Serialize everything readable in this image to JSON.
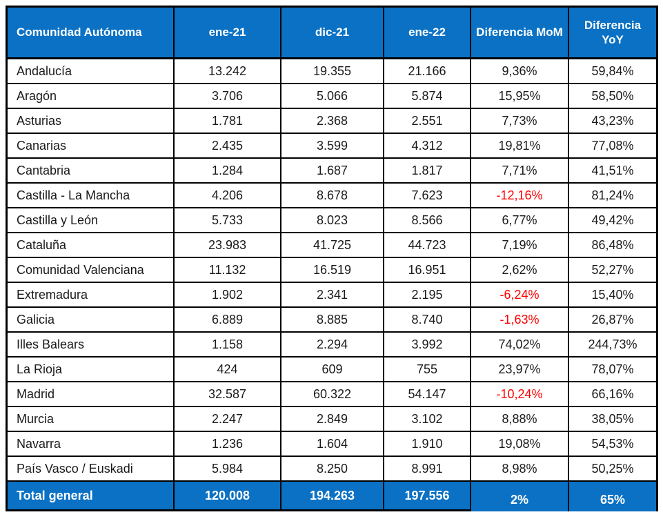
{
  "table": {
    "columns": [
      {
        "label": "Comunidad Autónoma"
      },
      {
        "label": "ene-21"
      },
      {
        "label": "dic-21"
      },
      {
        "label": "ene-22"
      },
      {
        "label": "Diferencia MoM"
      },
      {
        "label": "Diferencia YoY"
      }
    ],
    "rows": [
      {
        "name": "Andalucía",
        "ene21": "13.242",
        "dic21": "19.355",
        "ene22": "21.166",
        "mom": "9,36%",
        "yoy": "59,84%"
      },
      {
        "name": "Aragón",
        "ene21": "3.706",
        "dic21": "5.066",
        "ene22": "5.874",
        "mom": "15,95%",
        "yoy": "58,50%"
      },
      {
        "name": "Asturias",
        "ene21": "1.781",
        "dic21": "2.368",
        "ene22": "2.551",
        "mom": "7,73%",
        "yoy": "43,23%"
      },
      {
        "name": "Canarias",
        "ene21": "2.435",
        "dic21": "3.599",
        "ene22": "4.312",
        "mom": "19,81%",
        "yoy": "77,08%"
      },
      {
        "name": "Cantabria",
        "ene21": "1.284",
        "dic21": "1.687",
        "ene22": "1.817",
        "mom": "7,71%",
        "yoy": "41,51%"
      },
      {
        "name": "Castilla - La Mancha",
        "ene21": "4.206",
        "dic21": "8.678",
        "ene22": "7.623",
        "mom": "-12,16%",
        "yoy": "81,24%"
      },
      {
        "name": "Castilla y León",
        "ene21": "5.733",
        "dic21": "8.023",
        "ene22": "8.566",
        "mom": "6,77%",
        "yoy": "49,42%"
      },
      {
        "name": "Cataluña",
        "ene21": "23.983",
        "dic21": "41.725",
        "ene22": "44.723",
        "mom": "7,19%",
        "yoy": "86,48%"
      },
      {
        "name": "Comunidad Valenciana",
        "ene21": "11.132",
        "dic21": "16.519",
        "ene22": "16.951",
        "mom": "2,62%",
        "yoy": "52,27%"
      },
      {
        "name": "Extremadura",
        "ene21": "1.902",
        "dic21": "2.341",
        "ene22": "2.195",
        "mom": "-6,24%",
        "yoy": "15,40%"
      },
      {
        "name": "Galicia",
        "ene21": "6.889",
        "dic21": "8.885",
        "ene22": "8.740",
        "mom": "-1,63%",
        "yoy": "26,87%"
      },
      {
        "name": "Illes Balears",
        "ene21": "1.158",
        "dic21": "2.294",
        "ene22": "3.992",
        "mom": "74,02%",
        "yoy": "244,73%"
      },
      {
        "name": "La Rioja",
        "ene21": "424",
        "dic21": "609",
        "ene22": "755",
        "mom": "23,97%",
        "yoy": "78,07%"
      },
      {
        "name": "Madrid",
        "ene21": "32.587",
        "dic21": "60.322",
        "ene22": "54.147",
        "mom": "-10,24%",
        "yoy": "66,16%"
      },
      {
        "name": "Murcia",
        "ene21": "2.247",
        "dic21": "2.849",
        "ene22": "3.102",
        "mom": "8,88%",
        "yoy": "38,05%"
      },
      {
        "name": "Navarra",
        "ene21": "1.236",
        "dic21": "1.604",
        "ene22": "1.910",
        "mom": "19,08%",
        "yoy": "54,53%"
      },
      {
        "name": "País Vasco / Euskadi",
        "ene21": "5.984",
        "dic21": "8.250",
        "ene22": "8.991",
        "mom": "8,98%",
        "yoy": "50,25%"
      }
    ],
    "total": {
      "label": "Total general",
      "ene21": "120.008",
      "dic21": "194.263",
      "ene22": "197.556",
      "mom": "2%",
      "yoy": "65%"
    }
  },
  "colors": {
    "header_bg": "#0a71c4",
    "header_text": "#ffffff",
    "negative": "#ff0000",
    "border": "#000000"
  }
}
